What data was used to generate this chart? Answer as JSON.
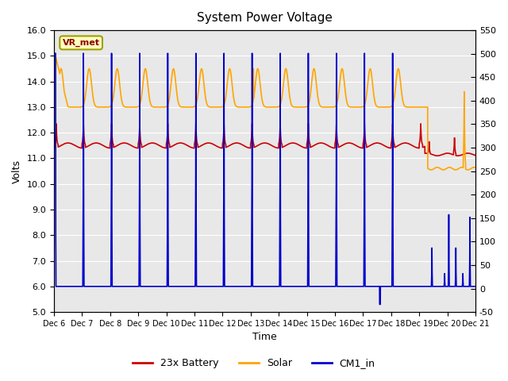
{
  "title": "System Power Voltage",
  "ylabel_left": "Volts",
  "xlabel": "Time",
  "ylim_left": [
    5.0,
    16.0
  ],
  "ylim_right": [
    -50,
    550
  ],
  "yticks_left": [
    5.0,
    6.0,
    7.0,
    8.0,
    9.0,
    10.0,
    11.0,
    12.0,
    13.0,
    14.0,
    15.0,
    16.0
  ],
  "yticks_right": [
    -50,
    0,
    50,
    100,
    150,
    200,
    250,
    300,
    350,
    400,
    450,
    500,
    550
  ],
  "xtick_labels": [
    "Dec 6",
    "Dec 7",
    "Dec 8",
    "Dec 9",
    "Dec 10",
    "Dec 11",
    "Dec 12",
    "Dec 13",
    "Dec 14",
    "Dec 15",
    "Dec 16",
    "Dec 17",
    "Dec 18",
    "Dec 19",
    "Dec 20",
    "Dec 21"
  ],
  "annotation_text": "VR_met",
  "annotation_fg": "#8B0000",
  "annotation_bg": "#FFFFC0",
  "annotation_edge": "#A0A000",
  "bg_color": "#E8E8E8",
  "grid_color": "white",
  "legend_entries": [
    "23x Battery",
    "Solar",
    "CM1_in"
  ],
  "legend_colors": [
    "#CC0000",
    "#FFA500",
    "#0000CC"
  ],
  "n_days": 15
}
